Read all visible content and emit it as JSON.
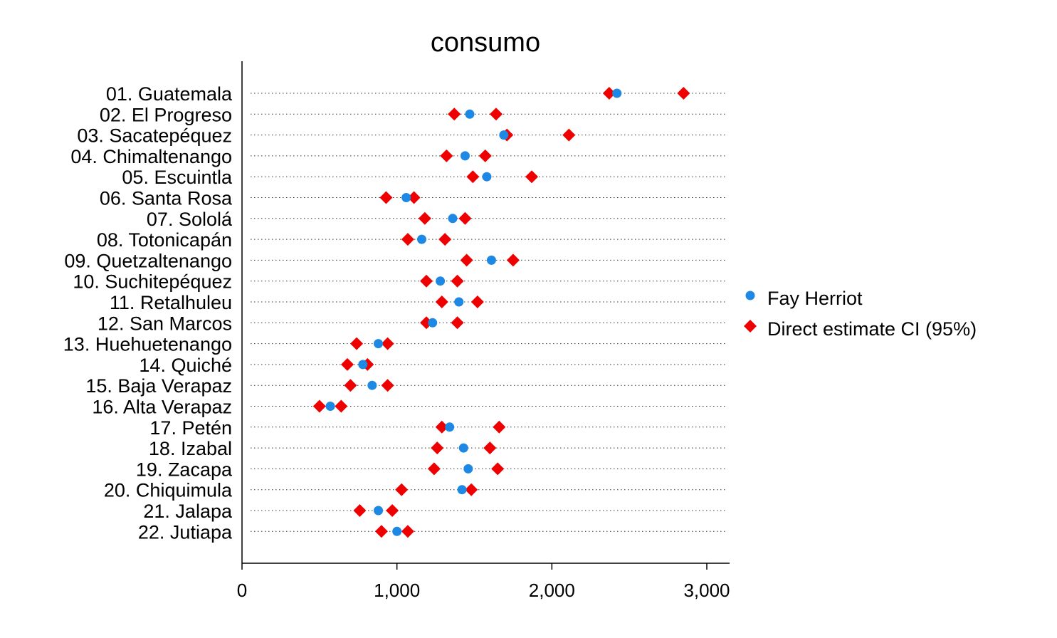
{
  "chart_data": {
    "type": "scatter",
    "title": "consumo",
    "xlabel": "",
    "ylabel": "",
    "xlim": [
      0,
      3150
    ],
    "xticks": [
      0,
      1000,
      2000,
      3000
    ],
    "xtick_labels": [
      "0",
      "1,000",
      "2,000",
      "3,000"
    ],
    "grid": "dotted horizontal guide per category",
    "legend_position": "right",
    "categories": [
      "01. Guatemala",
      "02. El Progreso",
      "03. Sacatepéquez",
      "04. Chimaltenango",
      "05. Escuintla",
      "06. Santa Rosa",
      "07. Sololá",
      "08. Totonicapán",
      "09. Quetzaltenango",
      "10. Suchitepéquez",
      "11. Retalhuleu",
      "12. San Marcos",
      "13. Huehuetenango",
      "14. Quiché",
      "15. Baja Verapaz",
      "16. Alta Verapaz",
      "17. Petén",
      "18. Izabal",
      "19. Zacapa",
      "20. Chiquimula",
      "21. Jalapa",
      "22. Jutiapa"
    ],
    "series": [
      {
        "name": "Fay Herriot",
        "marker": "circle",
        "color": "#1e88e5",
        "values": [
          2420,
          1470,
          1690,
          1440,
          1580,
          1060,
          1360,
          1160,
          1610,
          1280,
          1400,
          1230,
          880,
          780,
          840,
          570,
          1340,
          1430,
          1460,
          1420,
          880,
          1000
        ]
      },
      {
        "name": "Direct estimate CI (95%)",
        "marker": "diamond",
        "color": "#ee0000",
        "lower": [
          2370,
          1370,
          1710,
          1320,
          1490,
          930,
          1180,
          1070,
          1450,
          1190,
          1290,
          1190,
          740,
          680,
          700,
          500,
          1290,
          1260,
          1240,
          1030,
          760,
          900
        ],
        "upper": [
          2850,
          1640,
          2110,
          1570,
          1870,
          1110,
          1440,
          1310,
          1750,
          1390,
          1520,
          1390,
          940,
          810,
          940,
          640,
          1660,
          1600,
          1650,
          1480,
          970,
          1070
        ]
      }
    ]
  }
}
